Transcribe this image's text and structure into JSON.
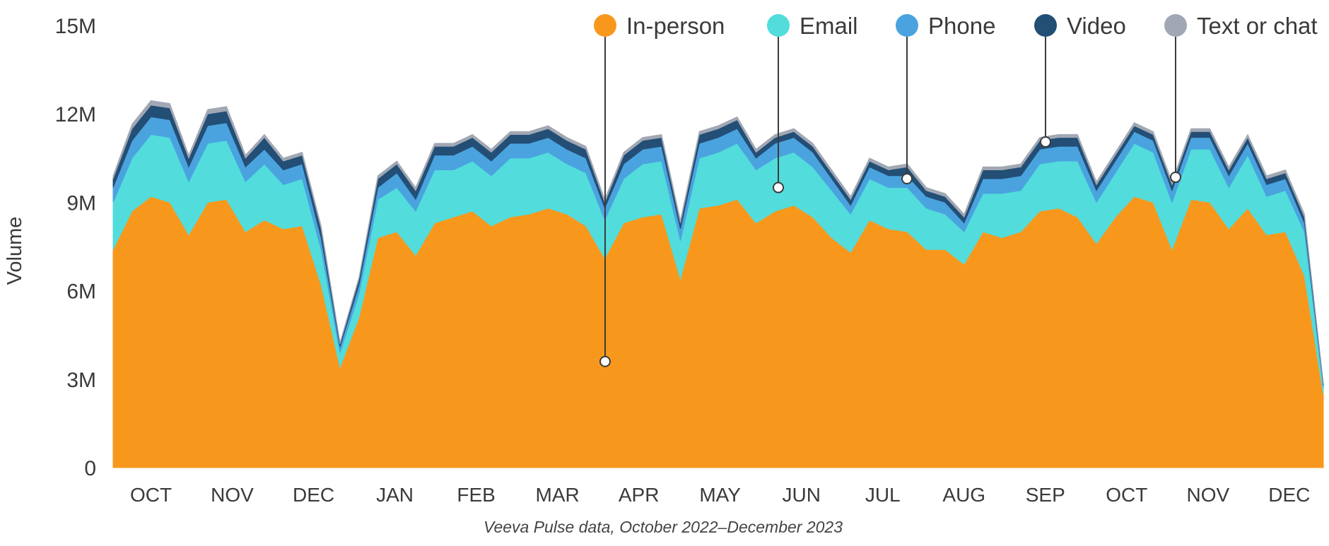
{
  "chart_data": {
    "type": "area",
    "stacked": true,
    "title": "",
    "ylabel": "Volume",
    "xlabel": "",
    "caption": "Veeva Pulse data, October 2022–December 2023",
    "ylim": [
      0,
      15000000
    ],
    "yticks": [
      {
        "value": 0,
        "label": "0"
      },
      {
        "value": 3000000,
        "label": "3M"
      },
      {
        "value": 6000000,
        "label": "6M"
      },
      {
        "value": 9000000,
        "label": "9M"
      },
      {
        "value": 12000000,
        "label": "12M"
      },
      {
        "value": 15000000,
        "label": "15M"
      }
    ],
    "x_unit": "week index (Oct 2022 - Dec 2023)",
    "xlim": [
      0,
      64
    ],
    "month_ticks": [
      {
        "label": "OCT",
        "week": 2
      },
      {
        "label": "NOV",
        "week": 6.3
      },
      {
        "label": "DEC",
        "week": 10.6
      },
      {
        "label": "JAN",
        "week": 14.9
      },
      {
        "label": "FEB",
        "week": 19.2
      },
      {
        "label": "MAR",
        "week": 23.5
      },
      {
        "label": "APR",
        "week": 27.8
      },
      {
        "label": "MAY",
        "week": 32.1
      },
      {
        "label": "JUN",
        "week": 36.4
      },
      {
        "label": "JUL",
        "week": 40.7
      },
      {
        "label": "AUG",
        "week": 45
      },
      {
        "label": "SEP",
        "week": 49.3
      },
      {
        "label": "OCT",
        "week": 53.6
      },
      {
        "label": "NOV",
        "week": 57.9
      },
      {
        "label": "DEC",
        "week": 62.2
      }
    ],
    "series": [
      {
        "name": "In-person",
        "color": "#F7981D",
        "values": [
          7.4,
          8.7,
          9.2,
          9.0,
          7.9,
          9.0,
          9.1,
          8.0,
          8.4,
          8.1,
          8.2,
          6.2,
          3.4,
          5.1,
          7.8,
          8.0,
          7.2,
          8.3,
          8.5,
          8.7,
          8.2,
          8.5,
          8.6,
          8.8,
          8.6,
          8.2,
          7.1,
          8.3,
          8.5,
          8.6,
          6.4,
          8.8,
          8.9,
          9.1,
          8.3,
          8.7,
          8.9,
          8.5,
          7.8,
          7.3,
          8.4,
          8.1,
          8.0,
          7.4,
          7.4,
          6.9,
          8.0,
          7.8,
          8.0,
          8.7,
          8.8,
          8.5,
          7.6,
          8.5,
          9.2,
          9.0,
          7.4,
          9.1,
          9.0,
          8.1,
          8.8,
          7.9,
          8.0,
          6.5,
          2.5
        ]
      },
      {
        "name": "Email",
        "color": "#52DCDC",
        "values": [
          1.6,
          1.8,
          2.1,
          2.2,
          1.8,
          2.0,
          2.0,
          1.7,
          1.9,
          1.5,
          1.6,
          1.2,
          0.5,
          0.8,
          1.3,
          1.5,
          1.5,
          1.8,
          1.6,
          1.7,
          1.7,
          2.0,
          1.9,
          1.9,
          1.7,
          1.8,
          1.3,
          1.5,
          1.8,
          1.8,
          1.3,
          1.7,
          1.8,
          1.9,
          1.8,
          1.8,
          1.8,
          1.7,
          1.6,
          1.3,
          1.4,
          1.4,
          1.5,
          1.4,
          1.2,
          1.1,
          1.3,
          1.5,
          1.4,
          1.6,
          1.6,
          1.9,
          1.4,
          1.5,
          1.8,
          1.7,
          1.6,
          1.7,
          1.8,
          1.4,
          1.8,
          1.3,
          1.4,
          1.5,
          0.2
        ]
      },
      {
        "name": "Phone",
        "color": "#4AA3DF",
        "values": [
          0.5,
          0.6,
          0.6,
          0.6,
          0.5,
          0.6,
          0.6,
          0.5,
          0.5,
          0.5,
          0.5,
          0.4,
          0.2,
          0.3,
          0.4,
          0.5,
          0.4,
          0.5,
          0.5,
          0.5,
          0.5,
          0.5,
          0.5,
          0.5,
          0.5,
          0.5,
          0.4,
          0.5,
          0.5,
          0.5,
          0.4,
          0.5,
          0.5,
          0.5,
          0.4,
          0.5,
          0.5,
          0.5,
          0.4,
          0.3,
          0.4,
          0.4,
          0.4,
          0.4,
          0.4,
          0.3,
          0.5,
          0.5,
          0.5,
          0.5,
          0.5,
          0.5,
          0.4,
          0.4,
          0.4,
          0.4,
          0.4,
          0.4,
          0.4,
          0.4,
          0.4,
          0.4,
          0.4,
          0.3,
          0.1
        ]
      },
      {
        "name": "Video",
        "color": "#234E75",
        "values": [
          0.3,
          0.4,
          0.4,
          0.4,
          0.3,
          0.4,
          0.4,
          0.3,
          0.4,
          0.3,
          0.3,
          0.3,
          0.1,
          0.2,
          0.3,
          0.3,
          0.3,
          0.3,
          0.3,
          0.3,
          0.3,
          0.3,
          0.3,
          0.3,
          0.3,
          0.3,
          0.2,
          0.3,
          0.3,
          0.3,
          0.2,
          0.3,
          0.3,
          0.3,
          0.2,
          0.2,
          0.2,
          0.2,
          0.2,
          0.2,
          0.2,
          0.2,
          0.3,
          0.2,
          0.2,
          0.2,
          0.3,
          0.3,
          0.3,
          0.3,
          0.3,
          0.3,
          0.2,
          0.2,
          0.2,
          0.2,
          0.2,
          0.2,
          0.2,
          0.2,
          0.2,
          0.2,
          0.2,
          0.2,
          0.05
        ]
      },
      {
        "name": "Text or chat",
        "color": "#A1A8B4",
        "values": [
          0.1,
          0.15,
          0.15,
          0.15,
          0.1,
          0.15,
          0.15,
          0.1,
          0.1,
          0.1,
          0.1,
          0.1,
          0.05,
          0.05,
          0.1,
          0.1,
          0.1,
          0.1,
          0.1,
          0.1,
          0.1,
          0.1,
          0.1,
          0.1,
          0.1,
          0.1,
          0.1,
          0.1,
          0.1,
          0.1,
          0.1,
          0.1,
          0.1,
          0.1,
          0.1,
          0.1,
          0.1,
          0.1,
          0.1,
          0.1,
          0.1,
          0.1,
          0.1,
          0.1,
          0.1,
          0.1,
          0.1,
          0.1,
          0.1,
          0.1,
          0.1,
          0.1,
          0.1,
          0.1,
          0.1,
          0.1,
          0.1,
          0.1,
          0.1,
          0.1,
          0.1,
          0.1,
          0.1,
          0.1,
          0.02
        ]
      }
    ],
    "values_unit": "millions",
    "legend": {
      "placement": "top-right",
      "callouts": [
        {
          "series": "In-person",
          "week": 26,
          "value": 3.6
        },
        {
          "series": "Email",
          "week": 35.2,
          "value": 9.5
        },
        {
          "series": "Phone",
          "week": 41.9,
          "value": 9.8
        },
        {
          "series": "Video",
          "week": 49.3,
          "value": 11.05
        },
        {
          "series": "Text or chat",
          "week": 56.2,
          "value": 9.85
        }
      ]
    }
  }
}
